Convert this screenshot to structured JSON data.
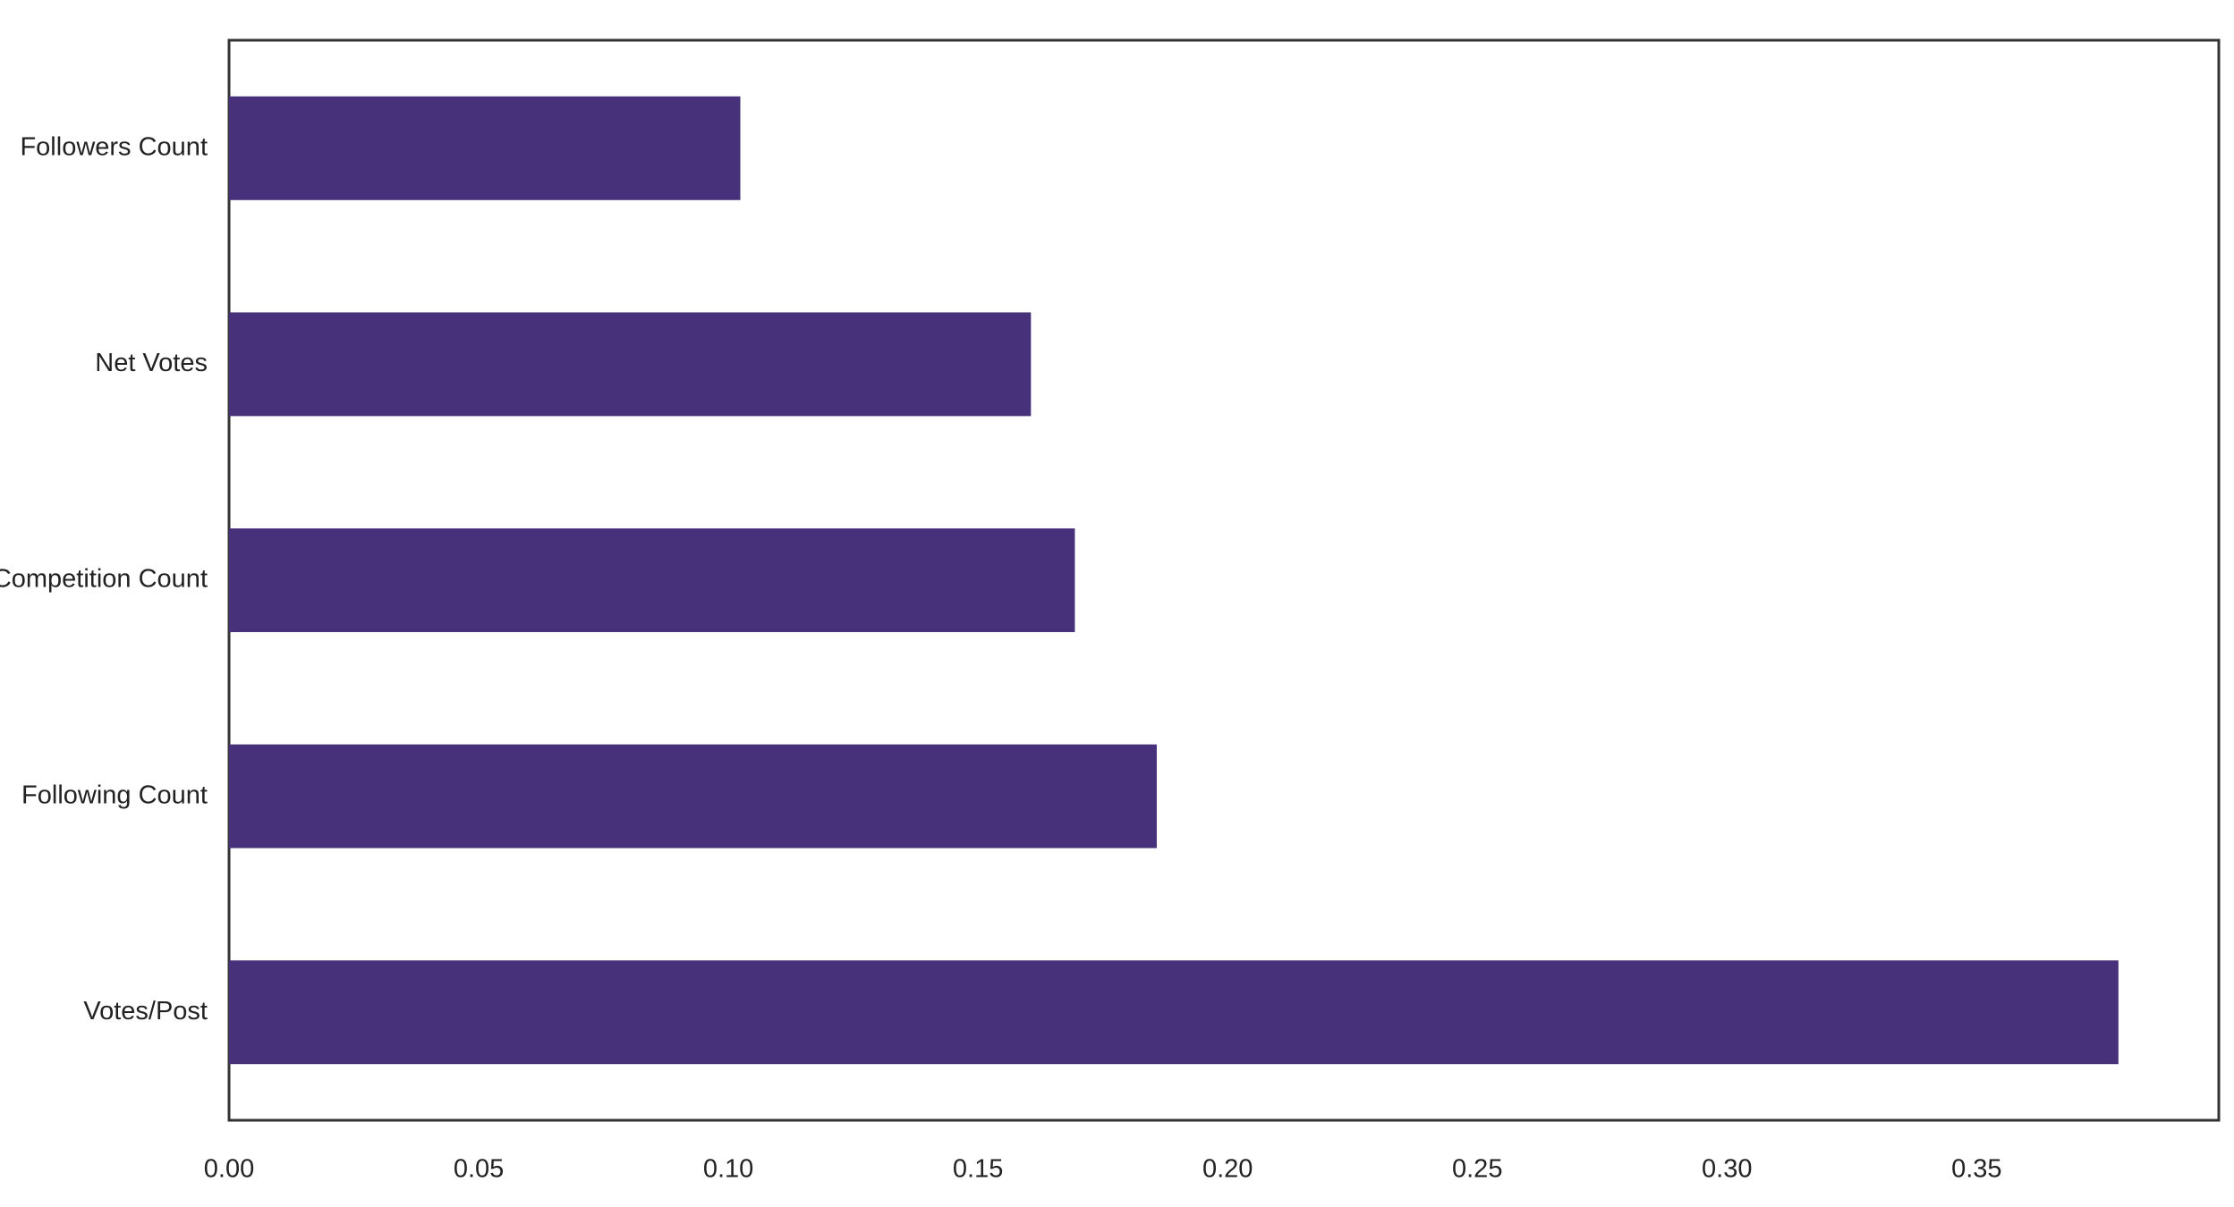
{
  "chart_data": {
    "type": "barh",
    "categories": [
      "Followers Count",
      "Net Votes",
      "Competition Count",
      "Following Count",
      "Votes/Post"
    ],
    "values": [
      0.1024,
      0.1606,
      0.1694,
      0.1858,
      0.3784
    ],
    "color": "#46317a",
    "xlim": [
      0,
      0.3985
    ],
    "xticks": [
      {
        "value": 0,
        "label": "0.00"
      },
      0.05,
      {
        "value": 0.1,
        "label": "0.10"
      },
      0.15,
      {
        "value": 0.2,
        "label": "0.20"
      },
      0.25,
      {
        "value": 0.3,
        "label": "0.30"
      },
      0.35
    ],
    "grid": false
  }
}
